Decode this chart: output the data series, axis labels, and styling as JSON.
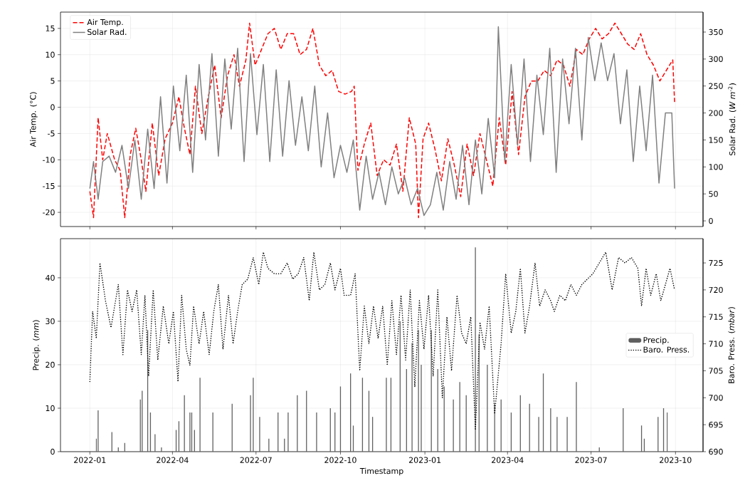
{
  "chart_data": [
    {
      "type": "line",
      "ylabel": "Air Temp. (°C)",
      "y2label": "Solar Rad. (*W m*$^{-2}$)",
      "xlim": [
        "2021-11-30",
        "2023-10-31"
      ],
      "ylim": [
        -22.7,
        18.1
      ],
      "y2lim": [
        -10.5,
        387
      ],
      "xticks": [
        "2022-01",
        "2022-04",
        "2022-07",
        "2022-10",
        "2023-01",
        "2023-04",
        "2023-07",
        "2023-10"
      ],
      "yticks": [
        -20,
        -15,
        -10,
        -5,
        0,
        5,
        10,
        15
      ],
      "y2ticks": [
        0,
        50,
        100,
        150,
        200,
        250,
        300,
        350
      ],
      "tick_labels": "y",
      "grid": true,
      "legend": "top left",
      "series": [
        {
          "name": "Air Temp.",
          "color": "#ff0000",
          "line_style": "dashed",
          "x": [
            "2022-01-01",
            "2022-01-05",
            "2022-01-10",
            "2022-01-15",
            "2022-01-20",
            "2022-01-28",
            "2022-02-03",
            "2022-02-08",
            "2022-02-14",
            "2022-02-20",
            "2022-02-26",
            "2022-03-03",
            "2022-03-10",
            "2022-03-17",
            "2022-03-24",
            "2022-04-01",
            "2022-04-08",
            "2022-04-14",
            "2022-04-20",
            "2022-04-26",
            "2022-05-03",
            "2022-05-10",
            "2022-05-17",
            "2022-05-24",
            "2022-05-31",
            "2022-06-07",
            "2022-06-13",
            "2022-06-20",
            "2022-06-24",
            "2022-06-30",
            "2022-07-07",
            "2022-07-14",
            "2022-07-21",
            "2022-07-28",
            "2022-08-04",
            "2022-08-11",
            "2022-08-18",
            "2022-08-25",
            "2022-09-01",
            "2022-09-08",
            "2022-09-15",
            "2022-09-22",
            "2022-09-29",
            "2022-10-06",
            "2022-10-13",
            "2022-10-16",
            "2022-10-20",
            "2022-10-27",
            "2022-11-03",
            "2022-11-10",
            "2022-11-17",
            "2022-11-24",
            "2022-12-01",
            "2022-12-08",
            "2022-12-15",
            "2022-12-22",
            "2022-12-25",
            "2022-12-30",
            "2023-01-05",
            "2023-01-12",
            "2023-01-19",
            "2023-01-26",
            "2023-02-02",
            "2023-02-09",
            "2023-02-16",
            "2023-02-23",
            "2023-03-02",
            "2023-03-09",
            "2023-03-16",
            "2023-03-23",
            "2023-03-30",
            "2023-04-06",
            "2023-04-13",
            "2023-04-20",
            "2023-04-27",
            "2023-05-04",
            "2023-05-11",
            "2023-05-18",
            "2023-05-25",
            "2023-06-01",
            "2023-06-08",
            "2023-06-15",
            "2023-06-22",
            "2023-06-29",
            "2023-07-06",
            "2023-07-13",
            "2023-07-20",
            "2023-07-27",
            "2023-08-03",
            "2023-08-10",
            "2023-08-17",
            "2023-08-24",
            "2023-08-31",
            "2023-09-07",
            "2023-09-14",
            "2023-09-21",
            "2023-09-28",
            "2023-09-30"
          ],
          "values": [
            -16,
            -21,
            -2,
            -10,
            -5,
            -10,
            -12,
            -21,
            -9,
            -4,
            -10,
            -16,
            -3,
            -13,
            -6,
            -3,
            2,
            -4,
            -9,
            4,
            -5,
            2,
            8,
            -2,
            6,
            10,
            4,
            9,
            16,
            8,
            11,
            14,
            15,
            11,
            14,
            14,
            10,
            11,
            15,
            8,
            6,
            7,
            3,
            2.5,
            3,
            4,
            -12,
            -7,
            -3,
            -13,
            -10,
            -11,
            -7,
            -16,
            -2,
            -7,
            -21,
            -6,
            -3,
            -8,
            -14,
            -6,
            -11,
            -17,
            -7,
            -13,
            -5,
            -10,
            -15,
            -2,
            -11,
            3,
            -9,
            2,
            5,
            5,
            7,
            6,
            9,
            8,
            4,
            11,
            10,
            13,
            15,
            13,
            14,
            16,
            14,
            12,
            11,
            14,
            10,
            8,
            5,
            7,
            9,
            1
          ]
        },
        {
          "name": "Solar Rad.",
          "color": "#808080",
          "axis": "y2",
          "x": [
            "2022-01-01",
            "2022-01-05",
            "2022-01-10",
            "2022-01-15",
            "2022-01-22",
            "2022-01-29",
            "2022-02-05",
            "2022-02-12",
            "2022-02-19",
            "2022-02-26",
            "2022-03-05",
            "2022-03-12",
            "2022-03-19",
            "2022-03-26",
            "2022-04-02",
            "2022-04-09",
            "2022-04-16",
            "2022-04-23",
            "2022-04-30",
            "2022-05-07",
            "2022-05-14",
            "2022-05-21",
            "2022-05-28",
            "2022-06-04",
            "2022-06-11",
            "2022-06-18",
            "2022-06-25",
            "2022-07-02",
            "2022-07-09",
            "2022-07-16",
            "2022-07-23",
            "2022-07-30",
            "2022-08-06",
            "2022-08-13",
            "2022-08-20",
            "2022-08-27",
            "2022-09-03",
            "2022-09-10",
            "2022-09-17",
            "2022-09-24",
            "2022-10-01",
            "2022-10-08",
            "2022-10-15",
            "2022-10-22",
            "2022-10-29",
            "2022-11-05",
            "2022-11-12",
            "2022-11-19",
            "2022-11-26",
            "2022-12-03",
            "2022-12-10",
            "2022-12-17",
            "2022-12-24",
            "2022-12-31",
            "2023-01-07",
            "2023-01-14",
            "2023-01-21",
            "2023-01-28",
            "2023-02-04",
            "2023-02-11",
            "2023-02-18",
            "2023-02-25",
            "2023-03-04",
            "2023-03-11",
            "2023-03-18",
            "2023-03-22",
            "2023-03-29",
            "2023-04-05",
            "2023-04-12",
            "2023-04-19",
            "2023-04-26",
            "2023-05-03",
            "2023-05-10",
            "2023-05-17",
            "2023-05-24",
            "2023-05-31",
            "2023-06-07",
            "2023-06-14",
            "2023-06-21",
            "2023-06-28",
            "2023-07-05",
            "2023-07-12",
            "2023-07-19",
            "2023-07-26",
            "2023-08-02",
            "2023-08-09",
            "2023-08-16",
            "2023-08-23",
            "2023-08-30",
            "2023-09-06",
            "2023-09-13",
            "2023-09-20",
            "2023-09-27",
            "2023-09-30"
          ],
          "values": [
            60,
            110,
            40,
            110,
            120,
            90,
            140,
            60,
            150,
            40,
            170,
            60,
            230,
            70,
            250,
            130,
            270,
            90,
            290,
            150,
            310,
            120,
            300,
            170,
            320,
            110,
            310,
            160,
            290,
            110,
            280,
            120,
            260,
            140,
            230,
            130,
            250,
            100,
            200,
            80,
            140,
            90,
            150,
            20,
            120,
            40,
            90,
            30,
            100,
            50,
            80,
            30,
            60,
            10,
            30,
            90,
            20,
            110,
            40,
            140,
            30,
            150,
            50,
            190,
            80,
            360,
            110,
            290,
            140,
            300,
            110,
            270,
            160,
            320,
            90,
            300,
            180,
            320,
            150,
            340,
            260,
            330,
            260,
            310,
            180,
            280,
            110,
            250,
            130,
            270,
            70,
            200,
            200,
            60
          ]
        }
      ]
    },
    {
      "type": "bar",
      "xlabel": "Timestamp",
      "ylabel": "Precip. (*mm*)",
      "y2label": "Baro. Press. (*mbar*)",
      "xlim": [
        "2021-11-30",
        "2023-10-31"
      ],
      "ylim": [
        0,
        49
      ],
      "y2lim": [
        690,
        729.5
      ],
      "xticks": [
        "2022-01",
        "2022-04",
        "2022-07",
        "2022-10",
        "2023-01",
        "2023-04",
        "2023-07",
        "2023-10"
      ],
      "yticks": [
        0,
        10,
        20,
        30,
        40
      ],
      "y2ticks": [
        690,
        695,
        700,
        705,
        710,
        715,
        720,
        725
      ],
      "grid": true,
      "legend": "right",
      "series": [
        {
          "name": "Precip.",
          "color": "#606060",
          "x": [
            "2022-01-08",
            "2022-01-10",
            "2022-01-25",
            "2022-02-01",
            "2022-02-08",
            "2022-02-25",
            "2022-02-27",
            "2022-03-05",
            "2022-03-08",
            "2022-03-13",
            "2022-03-20",
            "2022-04-05",
            "2022-04-08",
            "2022-04-14",
            "2022-04-20",
            "2022-04-22",
            "2022-04-25",
            "2022-05-01",
            "2022-05-15",
            "2022-06-05",
            "2022-06-25",
            "2022-06-28",
            "2022-07-05",
            "2022-07-15",
            "2022-07-25",
            "2022-08-01",
            "2022-08-05",
            "2022-08-15",
            "2022-08-25",
            "2022-09-05",
            "2022-09-20",
            "2022-09-25",
            "2022-10-01",
            "2022-10-12",
            "2022-10-15",
            "2022-10-25",
            "2022-11-01",
            "2022-11-05",
            "2022-11-20",
            "2022-11-25",
            "2022-12-05",
            "2022-12-12",
            "2022-12-18",
            "2022-12-25",
            "2022-12-28",
            "2023-01-08",
            "2023-01-15",
            "2023-01-22",
            "2023-02-01",
            "2023-02-08",
            "2023-02-15",
            "2023-02-25",
            "2023-03-01",
            "2023-03-10",
            "2023-03-18",
            "2023-03-25",
            "2023-04-05",
            "2023-04-15",
            "2023-04-25",
            "2023-05-05",
            "2023-05-10",
            "2023-05-18",
            "2023-05-25",
            "2023-06-05",
            "2023-06-15",
            "2023-07-10",
            "2023-08-05",
            "2023-08-25",
            "2023-08-28",
            "2023-09-12",
            "2023-09-18",
            "2023-09-22"
          ],
          "values": [
            3,
            9.5,
            4.5,
            1,
            2,
            12,
            14,
            28,
            9,
            4,
            1,
            5,
            7,
            13,
            9,
            9,
            5,
            17,
            9,
            11,
            13,
            17,
            8,
            3,
            9,
            3,
            9,
            13,
            14,
            9,
            10,
            9,
            15,
            18,
            6,
            17,
            14,
            8,
            17,
            17,
            30,
            19,
            25,
            28,
            20,
            28,
            19,
            15,
            12,
            16,
            13,
            47,
            27,
            20,
            11,
            12,
            9,
            13,
            11,
            8,
            18,
            10,
            8,
            8,
            16,
            1,
            10,
            6,
            3,
            8,
            10,
            9
          ]
        },
        {
          "name": "Baro. Press.",
          "color": "#000000",
          "type": "line",
          "line_style": "dotted",
          "axis": "y2",
          "x": [
            "2022-01-01",
            "2022-01-04",
            "2022-01-08",
            "2022-01-12",
            "2022-01-18",
            "2022-01-24",
            "2022-02-01",
            "2022-02-06",
            "2022-02-11",
            "2022-02-16",
            "2022-02-21",
            "2022-02-26",
            "2022-03-02",
            "2022-03-06",
            "2022-03-11",
            "2022-03-16",
            "2022-03-22",
            "2022-03-28",
            "2022-04-02",
            "2022-04-07",
            "2022-04-11",
            "2022-04-16",
            "2022-04-20",
            "2022-04-24",
            "2022-04-30",
            "2022-05-05",
            "2022-05-11",
            "2022-05-16",
            "2022-05-21",
            "2022-05-26",
            "2022-06-01",
            "2022-06-06",
            "2022-06-11",
            "2022-06-16",
            "2022-06-22",
            "2022-06-28",
            "2022-07-04",
            "2022-07-09",
            "2022-07-14",
            "2022-07-21",
            "2022-07-28",
            "2022-08-04",
            "2022-08-10",
            "2022-08-16",
            "2022-08-22",
            "2022-08-28",
            "2022-09-02",
            "2022-09-08",
            "2022-09-14",
            "2022-09-20",
            "2022-09-25",
            "2022-10-01",
            "2022-10-05",
            "2022-10-12",
            "2022-10-17",
            "2022-10-22",
            "2022-10-27",
            "2022-11-01",
            "2022-11-06",
            "2022-11-11",
            "2022-11-16",
            "2022-11-21",
            "2022-11-26",
            "2022-12-01",
            "2022-12-06",
            "2022-12-11",
            "2022-12-16",
            "2022-12-21",
            "2022-12-26",
            "2022-12-31",
            "2023-01-05",
            "2023-01-10",
            "2023-01-15",
            "2023-01-20",
            "2023-01-25",
            "2023-01-30",
            "2023-02-05",
            "2023-02-10",
            "2023-02-15",
            "2023-02-20",
            "2023-02-25",
            "2023-03-02",
            "2023-03-07",
            "2023-03-12",
            "2023-03-18",
            "2023-03-25",
            "2023-03-30",
            "2023-04-05",
            "2023-04-10",
            "2023-04-15",
            "2023-04-20",
            "2023-04-25",
            "2023-05-01",
            "2023-05-06",
            "2023-05-12",
            "2023-05-18",
            "2023-05-22",
            "2023-05-28",
            "2023-06-03",
            "2023-06-09",
            "2023-06-15",
            "2023-06-21",
            "2023-06-27",
            "2023-07-03",
            "2023-07-10",
            "2023-07-17",
            "2023-07-24",
            "2023-07-31",
            "2023-08-07",
            "2023-08-14",
            "2023-08-21",
            "2023-08-25",
            "2023-08-30",
            "2023-09-04",
            "2023-09-10",
            "2023-09-15",
            "2023-09-20",
            "2023-09-25",
            "2023-09-30"
          ],
          "values": [
            703,
            716,
            711,
            725,
            718,
            713,
            721,
            708,
            720,
            716,
            720,
            708,
            719,
            704,
            720,
            707,
            717,
            710,
            716,
            703,
            719,
            709,
            706,
            717,
            710,
            716,
            708,
            716,
            721,
            709,
            719,
            710,
            716,
            721,
            722,
            726,
            721,
            727,
            724,
            723,
            723,
            725,
            722,
            723,
            726,
            718,
            727,
            720,
            721,
            725,
            720,
            724,
            719,
            719,
            723,
            705,
            717,
            710,
            717,
            711,
            717,
            706,
            718,
            708,
            719,
            707,
            720,
            702,
            718,
            709,
            719,
            704,
            720,
            700,
            715,
            705,
            719,
            712,
            710,
            715,
            694,
            714,
            709,
            717,
            697,
            710,
            723,
            712,
            716,
            724,
            712,
            717,
            725,
            717,
            720,
            718,
            716,
            719,
            718,
            721,
            719,
            721,
            722,
            723,
            725,
            727,
            720,
            726,
            725,
            726,
            724,
            717,
            724,
            719,
            723,
            718,
            721,
            724,
            720
          ]
        }
      ]
    }
  ]
}
